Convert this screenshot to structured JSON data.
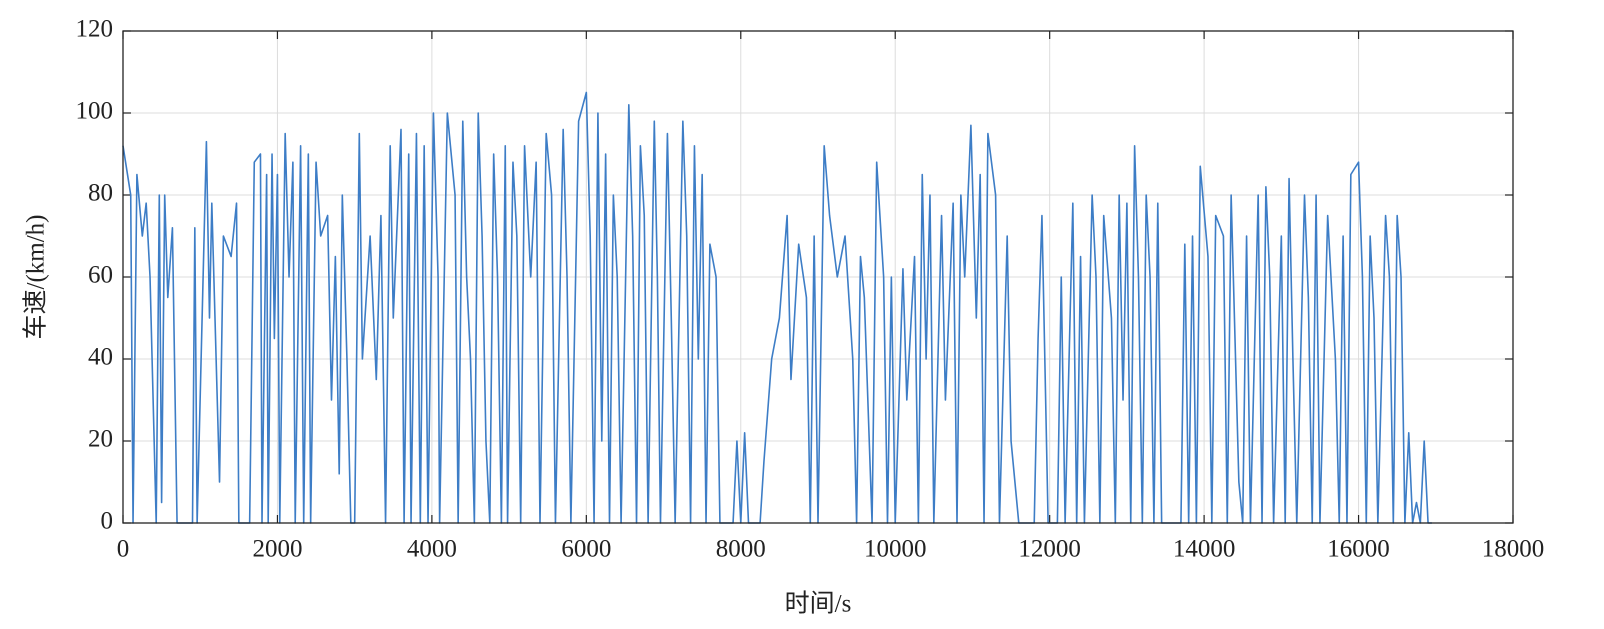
{
  "chart_data": {
    "type": "line",
    "xlabel": "时间/s",
    "ylabel": "车速/(km/h)",
    "xlim": [
      0,
      18000
    ],
    "xticks": [
      0,
      2000,
      4000,
      6000,
      8000,
      10000,
      12000,
      14000,
      16000,
      18000
    ],
    "ylim": [
      0,
      120
    ],
    "yticks": [
      0,
      20,
      40,
      60,
      80,
      100,
      120
    ],
    "grid": true,
    "x": [
      0,
      100,
      130,
      180,
      250,
      300,
      350,
      430,
      470,
      500,
      540,
      580,
      640,
      700,
      900,
      930,
      960,
      1080,
      1120,
      1150,
      1250,
      1300,
      1400,
      1470,
      1500,
      1640,
      1700,
      1780,
      1800,
      1860,
      1880,
      1930,
      1960,
      2000,
      2030,
      2100,
      2150,
      2200,
      2230,
      2300,
      2340,
      2400,
      2430,
      2500,
      2560,
      2650,
      2700,
      2750,
      2800,
      2840,
      2900,
      2950,
      3000,
      3060,
      3100,
      3200,
      3280,
      3340,
      3400,
      3460,
      3500,
      3600,
      3640,
      3700,
      3730,
      3800,
      3850,
      3900,
      3950,
      4020,
      4080,
      4100,
      4200,
      4300,
      4340,
      4400,
      4450,
      4500,
      4550,
      4600,
      4650,
      4700,
      4750,
      4800,
      4850,
      4900,
      4950,
      4980,
      5050,
      5100,
      5150,
      5200,
      5280,
      5350,
      5400,
      5480,
      5550,
      5600,
      5700,
      5750,
      5800,
      5900,
      6000,
      6050,
      6100,
      6150,
      6200,
      6250,
      6300,
      6350,
      6400,
      6450,
      6550,
      6600,
      6650,
      6700,
      6750,
      6800,
      6880,
      6920,
      6960,
      7050,
      7100,
      7150,
      7250,
      7300,
      7350,
      7400,
      7450,
      7500,
      7550,
      7600,
      7680,
      7730,
      7900,
      7950,
      8000,
      8050,
      8100,
      8250,
      8300,
      8400,
      8500,
      8600,
      8650,
      8750,
      8850,
      8900,
      8950,
      9000,
      9080,
      9150,
      9250,
      9350,
      9450,
      9500,
      9550,
      9600,
      9700,
      9760,
      9850,
      9900,
      9950,
      10000,
      10100,
      10150,
      10250,
      10300,
      10350,
      10400,
      10450,
      10500,
      10600,
      10650,
      10750,
      10800,
      10850,
      10900,
      10980,
      11050,
      11100,
      11150,
      11200,
      11300,
      11350,
      11450,
      11500,
      11600,
      11800,
      11850,
      11900,
      11980,
      12100,
      12150,
      12200,
      12300,
      12350,
      12400,
      12450,
      12550,
      12600,
      12650,
      12700,
      12800,
      12850,
      12900,
      12950,
      13000,
      13050,
      13100,
      13150,
      13200,
      13250,
      13300,
      13350,
      13400,
      13450,
      13700,
      13750,
      13800,
      13850,
      13900,
      13950,
      14050,
      14100,
      14150,
      14250,
      14300,
      14350,
      14450,
      14500,
      14550,
      14600,
      14700,
      14750,
      14800,
      14850,
      14900,
      15000,
      15050,
      15100,
      15150,
      15200,
      15300,
      15350,
      15400,
      15450,
      15500,
      15600,
      15700,
      15750,
      15800,
      15850,
      15900,
      16000,
      16050,
      16100,
      16150,
      16200,
      16250,
      16350,
      16400,
      16450,
      16500,
      16550,
      16600,
      16650,
      16700,
      16750,
      16800,
      16850,
      16900,
      16950
    ],
    "series": [
      {
        "color": "#3d7dc6",
        "values": [
          92,
          80,
          0,
          85,
          70,
          78,
          60,
          0,
          80,
          5,
          80,
          55,
          72,
          0,
          0,
          72,
          0,
          93,
          50,
          78,
          10,
          70,
          65,
          78,
          0,
          0,
          88,
          90,
          0,
          85,
          0,
          90,
          45,
          85,
          0,
          95,
          60,
          88,
          0,
          92,
          0,
          90,
          0,
          88,
          70,
          75,
          30,
          65,
          12,
          80,
          40,
          0,
          0,
          95,
          40,
          70,
          35,
          75,
          0,
          92,
          50,
          96,
          0,
          90,
          0,
          95,
          0,
          92,
          0,
          100,
          60,
          0,
          100,
          80,
          0,
          98,
          60,
          40,
          0,
          100,
          70,
          20,
          0,
          90,
          60,
          0,
          92,
          0,
          88,
          70,
          0,
          92,
          60,
          88,
          0,
          95,
          80,
          0,
          96,
          60,
          0,
          98,
          105,
          70,
          0,
          100,
          20,
          90,
          0,
          80,
          60,
          0,
          102,
          70,
          0,
          92,
          75,
          0,
          98,
          60,
          0,
          95,
          50,
          0,
          98,
          70,
          0,
          92,
          40,
          85,
          0,
          68,
          60,
          0,
          0,
          20,
          0,
          22,
          0,
          0,
          15,
          40,
          50,
          75,
          35,
          68,
          55,
          0,
          70,
          0,
          92,
          75,
          60,
          70,
          40,
          0,
          65,
          55,
          0,
          88,
          60,
          0,
          60,
          0,
          62,
          30,
          65,
          0,
          85,
          40,
          80,
          0,
          75,
          30,
          78,
          0,
          80,
          60,
          97,
          50,
          85,
          0,
          95,
          80,
          0,
          70,
          20,
          0,
          0,
          45,
          75,
          0,
          0,
          60,
          0,
          78,
          0,
          65,
          0,
          80,
          60,
          0,
          75,
          50,
          0,
          80,
          30,
          78,
          0,
          92,
          60,
          0,
          80,
          60,
          0,
          78,
          0,
          0,
          68,
          0,
          70,
          0,
          87,
          65,
          0,
          75,
          70,
          0,
          80,
          10,
          0,
          70,
          0,
          80,
          0,
          82,
          60,
          0,
          70,
          0,
          84,
          40,
          0,
          80,
          55,
          0,
          80,
          0,
          75,
          40,
          0,
          70,
          0,
          85,
          88,
          60,
          0,
          70,
          50,
          0,
          75,
          60,
          0,
          75,
          60,
          0,
          22,
          0,
          5,
          0,
          20,
          0,
          0
        ]
      }
    ]
  }
}
